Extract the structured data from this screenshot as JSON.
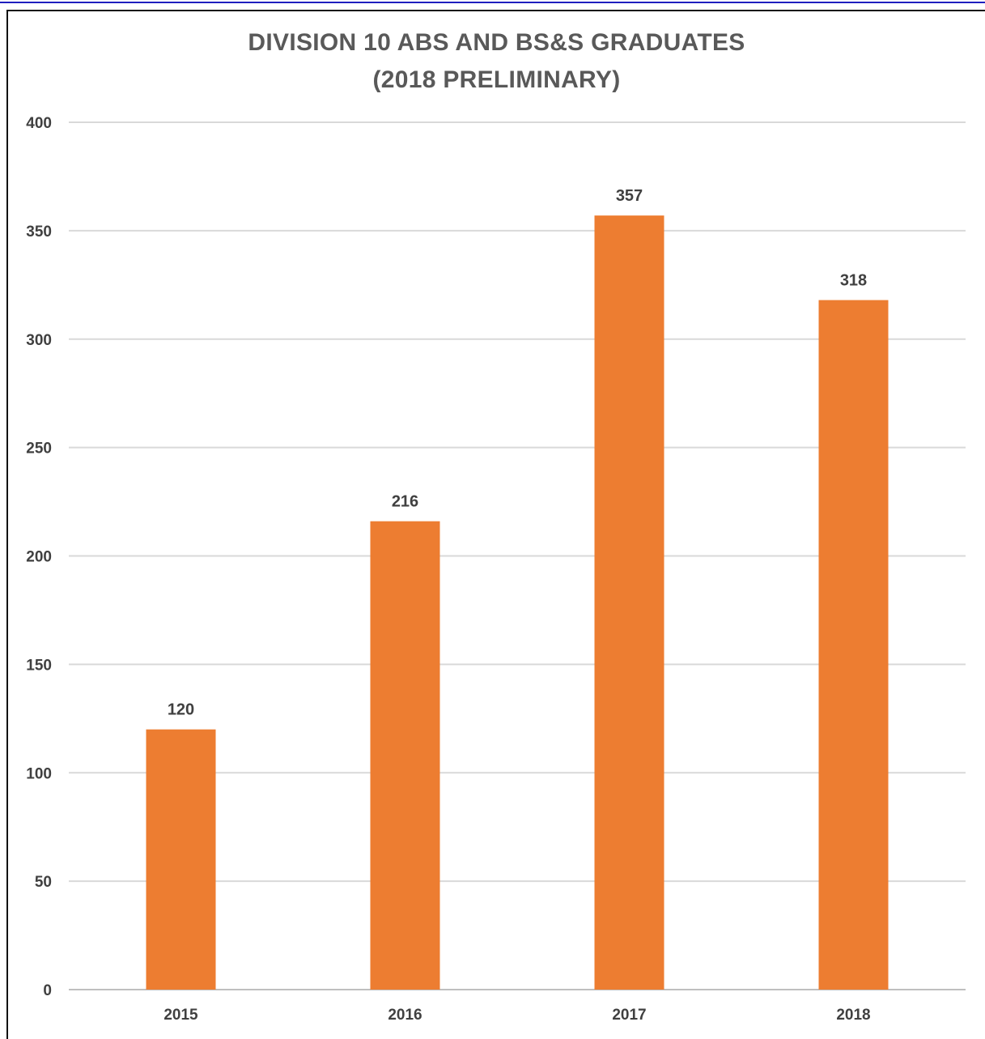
{
  "chart_data": {
    "type": "bar",
    "title_line1": "DIVISION 10 ABS AND BS&S GRADUATES",
    "title_line2": "(2018 PRELIMINARY)",
    "categories": [
      "2015",
      "2016",
      "2017",
      "2018"
    ],
    "values": [
      120,
      216,
      357,
      318
    ],
    "data_labels": [
      "120",
      "216",
      "357",
      "318"
    ],
    "xlabel": "",
    "ylabel": "",
    "ylim": [
      0,
      400
    ],
    "yticks": [
      "0",
      "50",
      "100",
      "150",
      "200",
      "250",
      "300",
      "350",
      "400"
    ],
    "grid": true,
    "legend": "none",
    "bar_color": "#ED7D31",
    "grid_color": "#D9D9D9"
  }
}
